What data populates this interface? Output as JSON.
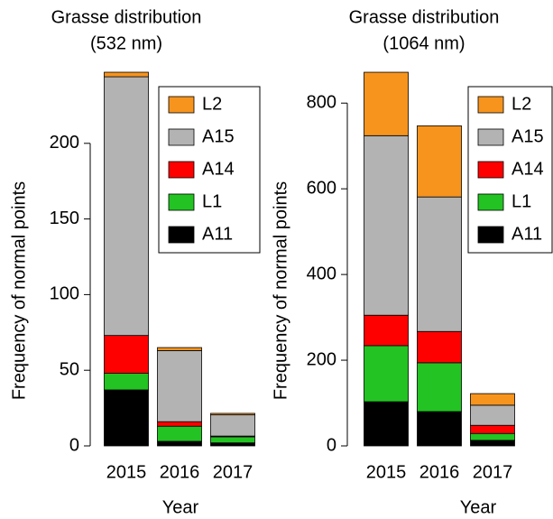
{
  "chart_data": [
    {
      "type": "bar",
      "stacked": true,
      "title": "Grasse distribution",
      "subtitle": "(532 nm)",
      "xlabel": "Year",
      "ylabel": "Frequency of normal points",
      "categories": [
        "2015",
        "2016",
        "2017"
      ],
      "series": [
        {
          "name": "A11",
          "color": "#000000",
          "values": [
            37,
            3,
            2
          ]
        },
        {
          "name": "L1",
          "color": "#22c322",
          "values": [
            11,
            10,
            4
          ]
        },
        {
          "name": "A14",
          "color": "#ff0000",
          "values": [
            25,
            3,
            0.5
          ]
        },
        {
          "name": "A15",
          "color": "#b3b3b3",
          "values": [
            171,
            47,
            14
          ]
        },
        {
          "name": "L2",
          "color": "#f7941d",
          "values": [
            3,
            2,
            1
          ]
        }
      ],
      "ylim": [
        0,
        250
      ],
      "yticks": [
        0,
        50,
        100,
        150,
        200
      ],
      "legend": "top-right"
    },
    {
      "type": "bar",
      "stacked": true,
      "title": "Grasse distribution",
      "subtitle": "(1064 nm)",
      "xlabel": "Year",
      "ylabel": "Frequency of normal points",
      "categories": [
        "2015",
        "2016",
        "2017"
      ],
      "series": [
        {
          "name": "A11",
          "color": "#000000",
          "values": [
            103,
            80,
            13
          ]
        },
        {
          "name": "L1",
          "color": "#22c322",
          "values": [
            131,
            114,
            16
          ]
        },
        {
          "name": "A14",
          "color": "#ff0000",
          "values": [
            71,
            73,
            19
          ]
        },
        {
          "name": "A15",
          "color": "#b3b3b3",
          "values": [
            419,
            314,
            47
          ]
        },
        {
          "name": "L2",
          "color": "#f7941d",
          "values": [
            148,
            166,
            27
          ]
        }
      ],
      "ylim": [
        0,
        870
      ],
      "yticks": [
        0,
        200,
        400,
        600,
        800
      ],
      "legend": "top-right"
    }
  ]
}
